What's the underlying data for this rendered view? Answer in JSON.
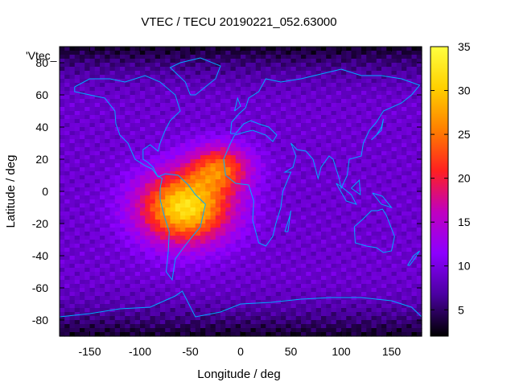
{
  "chart_data": {
    "type": "heatmap",
    "title": "VTEC / TECU 20190221_052.63000",
    "xlabel": "Longitude / deg",
    "ylabel": "Latitude / deg",
    "xlim": [
      -180,
      180
    ],
    "ylim": [
      -90,
      90
    ],
    "xticks": [
      -150,
      -100,
      -50,
      0,
      50,
      100,
      150
    ],
    "yticks": [
      -80,
      -60,
      -40,
      -20,
      0,
      20,
      40,
      60,
      80
    ],
    "colorbar": {
      "range": [
        2,
        35
      ],
      "ticks": [
        5,
        10,
        15,
        20,
        25,
        30,
        35
      ],
      "palette": [
        "#000000",
        "#4a00a0",
        "#8c00ff",
        "#c000c0",
        "#ff2020",
        "#ff8000",
        "#ffd000",
        "#ffff40"
      ]
    },
    "legend_entry": "'Vtec_",
    "grid": false,
    "model": {
      "background_tecu": 9,
      "peak_tecu": 32,
      "peak_center": [
        -55,
        -10
      ],
      "peak_spread_deg": [
        45,
        22
      ],
      "secondary_center": [
        -20,
        15
      ],
      "secondary_tecu": 28
    }
  },
  "colors": {
    "coastline": "#00aaff",
    "background": "#ffffff"
  }
}
